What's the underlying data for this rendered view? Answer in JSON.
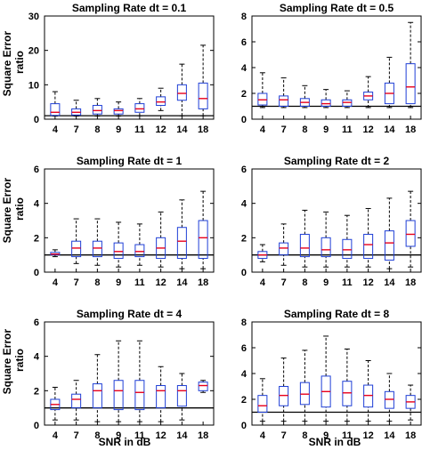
{
  "figure": {
    "ylabel_lines": [
      "Square Error",
      "ratio"
    ],
    "xlabel": "SNR in dB"
  },
  "chart_data": [
    {
      "type": "box",
      "title": "Sampling Rate dt = 0.1",
      "categories": [
        "4",
        "7",
        "8",
        "9",
        "11",
        "12",
        "14",
        "18"
      ],
      "ylim": [
        0,
        30
      ],
      "yticks": [
        0,
        10,
        20,
        30
      ],
      "ylabel": "Square Error ratio",
      "xlabel": "",
      "reference_line": 1,
      "boxes": [
        {
          "whisker_low": 0.9,
          "q1": 1.1,
          "median": 2.0,
          "q3": 4.5,
          "whisker_high": 8.0
        },
        {
          "whisker_low": 0.9,
          "q1": 1.2,
          "median": 2.0,
          "q3": 3.0,
          "whisker_high": 5.5
        },
        {
          "whisker_low": 0.9,
          "q1": 1.5,
          "median": 2.5,
          "q3": 4.0,
          "whisker_high": 6.0
        },
        {
          "whisker_low": 0.9,
          "q1": 1.5,
          "median": 2.5,
          "q3": 3.0,
          "whisker_high": 5.0
        },
        {
          "whisker_low": 1.0,
          "q1": 2.0,
          "median": 3.0,
          "q3": 4.5,
          "whisker_high": 6.0
        },
        {
          "whisker_low": 2.5,
          "q1": 4.0,
          "median": 5.0,
          "q3": 6.5,
          "whisker_high": 9.0
        },
        {
          "whisker_low": 1.0,
          "q1": 5.5,
          "median": 7.5,
          "q3": 10.0,
          "whisker_high": 16.0
        },
        {
          "whisker_low": 1.0,
          "q1": 3.0,
          "median": 6.0,
          "q3": 10.5,
          "whisker_high": 21.5
        }
      ]
    },
    {
      "type": "box",
      "title": "Sampling Rate dt = 0.5",
      "categories": [
        "4",
        "7",
        "8",
        "9",
        "11",
        "12",
        "14",
        "18"
      ],
      "ylim": [
        0,
        8
      ],
      "yticks": [
        0,
        2,
        4,
        6,
        8
      ],
      "ylabel": "",
      "xlabel": "",
      "reference_line": 1,
      "boxes": [
        {
          "whisker_low": 0.9,
          "q1": 1.1,
          "median": 1.5,
          "q3": 2.0,
          "whisker_high": 3.6
        },
        {
          "whisker_low": 0.9,
          "q1": 1.0,
          "median": 1.5,
          "q3": 1.8,
          "whisker_high": 3.2
        },
        {
          "whisker_low": 0.9,
          "q1": 1.0,
          "median": 1.3,
          "q3": 1.6,
          "whisker_high": 2.6
        },
        {
          "whisker_low": 0.9,
          "q1": 1.0,
          "median": 1.2,
          "q3": 1.5,
          "whisker_high": 2.3
        },
        {
          "whisker_low": 0.9,
          "q1": 1.0,
          "median": 1.3,
          "q3": 1.5,
          "whisker_high": 2.2
        },
        {
          "whisker_low": 0.9,
          "q1": 1.5,
          "median": 1.8,
          "q3": 2.1,
          "whisker_high": 3.3
        },
        {
          "whisker_low": 0.9,
          "q1": 1.2,
          "median": 2.0,
          "q3": 2.8,
          "whisker_high": 4.8
        },
        {
          "whisker_low": 0.9,
          "q1": 1.2,
          "median": 2.5,
          "q3": 4.3,
          "whisker_high": 7.5
        }
      ]
    },
    {
      "type": "box",
      "title": "Sampling Rate dt = 1",
      "categories": [
        "4",
        "7",
        "8",
        "9",
        "11",
        "12",
        "14",
        "18"
      ],
      "ylim": [
        0,
        6
      ],
      "yticks": [
        0,
        2,
        4,
        6
      ],
      "ylabel": "Square Error ratio",
      "xlabel": "",
      "reference_line": 1,
      "boxes": [
        {
          "whisker_low": 0.9,
          "q1": 1.0,
          "median": 1.05,
          "q3": 1.15,
          "whisker_high": 1.3
        },
        {
          "whisker_low": 0.5,
          "q1": 0.9,
          "median": 1.4,
          "q3": 1.8,
          "whisker_high": 3.1
        },
        {
          "whisker_low": 0.4,
          "q1": 0.9,
          "median": 1.4,
          "q3": 1.8,
          "whisker_high": 3.1
        },
        {
          "whisker_low": 0.3,
          "q1": 0.8,
          "median": 1.2,
          "q3": 1.7,
          "whisker_high": 2.9
        },
        {
          "whisker_low": 0.4,
          "q1": 0.9,
          "median": 1.2,
          "q3": 1.6,
          "whisker_high": 2.8
        },
        {
          "whisker_low": 0.3,
          "q1": 0.8,
          "median": 1.4,
          "q3": 2.0,
          "whisker_high": 3.5
        },
        {
          "whisker_low": 0.2,
          "q1": 0.8,
          "median": 1.8,
          "q3": 2.6,
          "whisker_high": 4.2
        },
        {
          "whisker_low": 0.2,
          "q1": 0.8,
          "median": 2.0,
          "q3": 3.0,
          "whisker_high": 4.7
        }
      ]
    },
    {
      "type": "box",
      "title": "Sampling Rate dt = 2",
      "categories": [
        "4",
        "7",
        "8",
        "9",
        "11",
        "12",
        "14",
        "18"
      ],
      "ylim": [
        0,
        6
      ],
      "yticks": [
        0,
        2,
        4,
        6
      ],
      "ylabel": "",
      "xlabel": "",
      "reference_line": 1,
      "boxes": [
        {
          "whisker_low": 0.6,
          "q1": 0.8,
          "median": 1.0,
          "q3": 1.2,
          "whisker_high": 1.6
        },
        {
          "whisker_low": 0.4,
          "q1": 1.0,
          "median": 1.4,
          "q3": 1.7,
          "whisker_high": 2.8
        },
        {
          "whisker_low": 0.3,
          "q1": 0.9,
          "median": 1.4,
          "q3": 2.2,
          "whisker_high": 3.6
        },
        {
          "whisker_low": 0.3,
          "q1": 0.9,
          "median": 1.3,
          "q3": 2.0,
          "whisker_high": 3.5
        },
        {
          "whisker_low": 0.3,
          "q1": 0.8,
          "median": 1.3,
          "q3": 1.9,
          "whisker_high": 3.3
        },
        {
          "whisker_low": 0.3,
          "q1": 0.8,
          "median": 1.6,
          "q3": 2.2,
          "whisker_high": 3.7
        },
        {
          "whisker_low": 0.2,
          "q1": 0.7,
          "median": 1.7,
          "q3": 2.4,
          "whisker_high": 4.3
        },
        {
          "whisker_low": 0.3,
          "q1": 1.5,
          "median": 2.2,
          "q3": 3.0,
          "whisker_high": 4.7
        }
      ]
    },
    {
      "type": "box",
      "title": "Sampling Rate dt = 4",
      "categories": [
        "4",
        "7",
        "8",
        "9",
        "11",
        "12",
        "14",
        "18"
      ],
      "ylim": [
        0,
        6
      ],
      "yticks": [
        0,
        2,
        4,
        6
      ],
      "ylabel": "Square Error ratio",
      "xlabel": "SNR in dB",
      "reference_line": 1,
      "boxes": [
        {
          "whisker_low": 0.3,
          "q1": 0.9,
          "median": 1.2,
          "q3": 1.5,
          "whisker_high": 2.2
        },
        {
          "whisker_low": 0.3,
          "q1": 1.0,
          "median": 1.5,
          "q3": 1.8,
          "whisker_high": 2.6
        },
        {
          "whisker_low": 0.2,
          "q1": 1.0,
          "median": 2.0,
          "q3": 2.4,
          "whisker_high": 4.1
        },
        {
          "whisker_low": 0.2,
          "q1": 0.9,
          "median": 2.0,
          "q3": 2.6,
          "whisker_high": 4.9
        },
        {
          "whisker_low": 0.2,
          "q1": 0.9,
          "median": 1.9,
          "q3": 2.6,
          "whisker_high": 4.9
        },
        {
          "whisker_low": 0.2,
          "q1": 1.0,
          "median": 2.0,
          "q3": 2.3,
          "whisker_high": 3.4
        },
        {
          "whisker_low": 0.3,
          "q1": 1.1,
          "median": 2.0,
          "q3": 2.3,
          "whisker_high": 3.0
        },
        {
          "whisker_low": 1.9,
          "q1": 2.0,
          "median": 2.3,
          "q3": 2.5,
          "whisker_high": 2.6
        }
      ]
    },
    {
      "type": "box",
      "title": "Sampling Rate dt = 8",
      "categories": [
        "4",
        "7",
        "8",
        "9",
        "11",
        "12",
        "14",
        "18"
      ],
      "ylim": [
        0,
        8
      ],
      "yticks": [
        0,
        2,
        4,
        6,
        8
      ],
      "ylabel": "",
      "xlabel": "SNR in dB",
      "reference_line": 1,
      "boxes": [
        {
          "whisker_low": 0.3,
          "q1": 1.0,
          "median": 1.5,
          "q3": 2.3,
          "whisker_high": 3.6
        },
        {
          "whisker_low": 0.3,
          "q1": 1.5,
          "median": 2.3,
          "q3": 3.0,
          "whisker_high": 5.2
        },
        {
          "whisker_low": 0.3,
          "q1": 1.6,
          "median": 2.4,
          "q3": 3.3,
          "whisker_high": 5.8
        },
        {
          "whisker_low": 0.3,
          "q1": 1.4,
          "median": 2.6,
          "q3": 3.8,
          "whisker_high": 6.9
        },
        {
          "whisker_low": 0.3,
          "q1": 1.5,
          "median": 2.5,
          "q3": 3.4,
          "whisker_high": 5.9
        },
        {
          "whisker_low": 0.3,
          "q1": 1.4,
          "median": 2.3,
          "q3": 3.1,
          "whisker_high": 5.0
        },
        {
          "whisker_low": 0.3,
          "q1": 1.3,
          "median": 2.0,
          "q3": 2.6,
          "whisker_high": 4.0
        },
        {
          "whisker_low": 0.4,
          "q1": 1.3,
          "median": 1.8,
          "q3": 2.3,
          "whisker_high": 3.1
        }
      ]
    }
  ]
}
